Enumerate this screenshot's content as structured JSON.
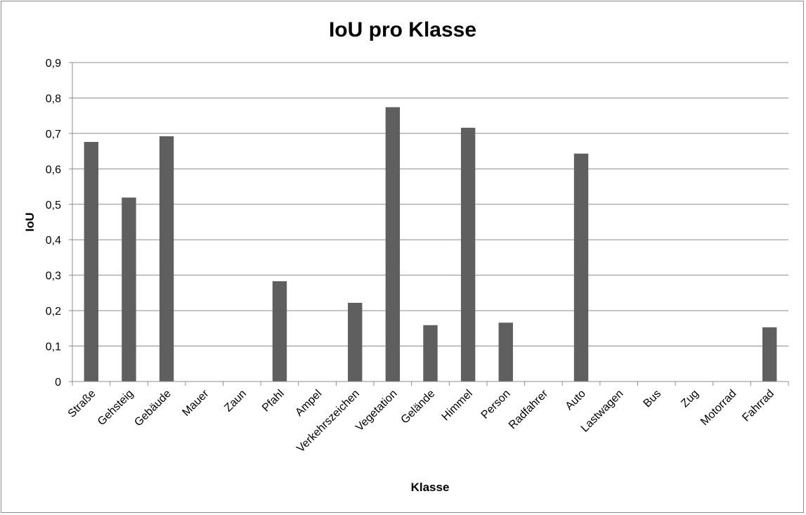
{
  "chart_data": {
    "type": "bar",
    "title": "IoU pro Klasse",
    "xlabel": "Klasse",
    "ylabel": "IoU",
    "ylim": [
      0,
      0.9
    ],
    "ytick_values": [
      0,
      0.1,
      0.2,
      0.3,
      0.4,
      0.5,
      0.6,
      0.7,
      0.8,
      0.9
    ],
    "ytick_labels": [
      "0",
      "0,1",
      "0,2",
      "0,3",
      "0,4",
      "0,5",
      "0,6",
      "0,7",
      "0,8",
      "0,9"
    ],
    "grid": true,
    "legend": "none",
    "bar_color": "#5f5f5f",
    "categories": [
      "Straße",
      "Gehsteig",
      "Gebäude",
      "Mauer",
      "Zaun",
      "Pfahl",
      "Ampel",
      "Verkehrszeichen",
      "Vegetation",
      "Gelände",
      "Himmel",
      "Person",
      "Radfahrer",
      "Auto",
      "Lastwagen",
      "Bus",
      "Zug",
      "Motorrad",
      "Fahrrad"
    ],
    "values": [
      0.676,
      0.519,
      0.692,
      0,
      0,
      0.283,
      0,
      0.222,
      0.774,
      0.159,
      0.716,
      0.166,
      0,
      0.643,
      0,
      0,
      0,
      0,
      0.153
    ]
  }
}
